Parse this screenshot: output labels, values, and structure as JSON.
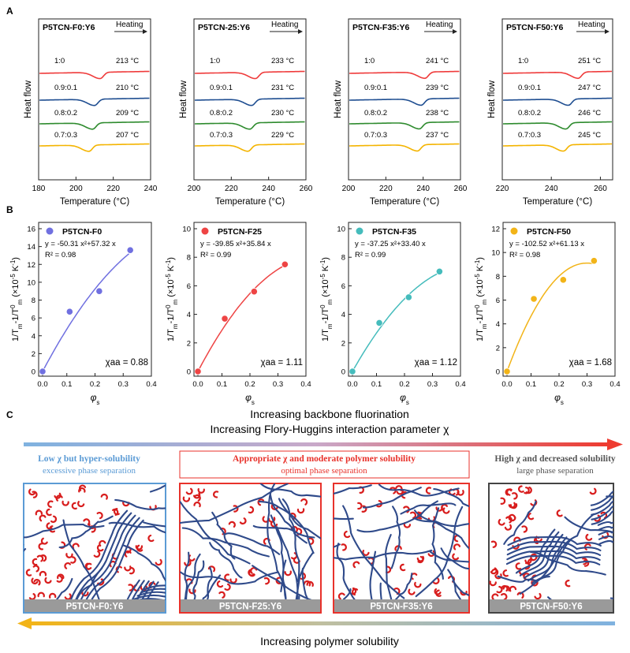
{
  "panel_labels": [
    "A",
    "B",
    "C"
  ],
  "dsc_xlabel": "Temperature (°C)",
  "dsc_ylabel": "Heat flow",
  "heating_label": "Heating",
  "fit_ylabel": "1/T_m-1/T^0_m (×10^-5 K^-1)",
  "fit_xlabel": "φ_s",
  "trace_colors": [
    "#ef3b3b",
    "#1f4e91",
    "#2e8b2e",
    "#f4b400"
  ],
  "chart_data": [
    {
      "type": "line",
      "panel": "A",
      "title": "P5TCN-F0:Y6",
      "xlabel": "Temperature (°C)",
      "ylabel": "Heat flow",
      "xlim": [
        180,
        240
      ],
      "xticks": [
        180,
        200,
        220,
        240
      ],
      "series": [
        {
          "name": "1:0",
          "peak": 213,
          "peak_label": "213 °C"
        },
        {
          "name": "0.9:0.1",
          "peak": 210,
          "peak_label": "210 °C"
        },
        {
          "name": "0.8:0.2",
          "peak": 209,
          "peak_label": "209 °C"
        },
        {
          "name": "0.7:0.3",
          "peak": 207,
          "peak_label": "207 °C"
        }
      ]
    },
    {
      "type": "line",
      "panel": "A",
      "title": "P5TCN-25:Y6",
      "xlabel": "Temperature (°C)",
      "ylabel": "Heat flow",
      "xlim": [
        200,
        260
      ],
      "xticks": [
        200,
        220,
        240,
        260
      ],
      "series": [
        {
          "name": "1:0",
          "peak": 233,
          "peak_label": "233 °C"
        },
        {
          "name": "0.9:0.1",
          "peak": 231,
          "peak_label": "231 °C"
        },
        {
          "name": "0.8:0.2",
          "peak": 230,
          "peak_label": "230 °C"
        },
        {
          "name": "0.7:0.3",
          "peak": 229,
          "peak_label": "229 °C"
        }
      ]
    },
    {
      "type": "line",
      "panel": "A",
      "title": "P5TCN-F35:Y6",
      "xlabel": "Temperature (°C)",
      "ylabel": "Heat flow",
      "xlim": [
        200,
        260
      ],
      "xticks": [
        200,
        220,
        240,
        260
      ],
      "series": [
        {
          "name": "1:0",
          "peak": 241,
          "peak_label": "241 °C"
        },
        {
          "name": "0.9:0.1",
          "peak": 239,
          "peak_label": "239 °C"
        },
        {
          "name": "0.8:0.2",
          "peak": 238,
          "peak_label": "238 °C"
        },
        {
          "name": "0.7:0.3",
          "peak": 237,
          "peak_label": "237 °C"
        }
      ]
    },
    {
      "type": "line",
      "panel": "A",
      "title": "P5TCN-F50:Y6",
      "xlabel": "Temperature (°C)",
      "ylabel": "Heat flow",
      "xlim": [
        220,
        265
      ],
      "xticks": [
        220,
        240,
        260
      ],
      "series": [
        {
          "name": "1:0",
          "peak": 251,
          "peak_label": "251 °C"
        },
        {
          "name": "0.9:0.1",
          "peak": 247,
          "peak_label": "247 °C"
        },
        {
          "name": "0.8:0.2",
          "peak": 246,
          "peak_label": "246 °C"
        },
        {
          "name": "0.7:0.3",
          "peak": 245,
          "peak_label": "245 °C"
        }
      ]
    },
    {
      "type": "scatter",
      "panel": "B",
      "name": "P5TCN-F0",
      "color": "#7070e0",
      "x": [
        0,
        0.11,
        0.215,
        0.325
      ],
      "y": [
        0,
        6.7,
        9.0,
        13.6
      ],
      "fit": {
        "a": -50.31,
        "b": 57.32
      },
      "equation": "y = -50.31 x²+57.32 x",
      "r2": "R² = 0.98",
      "chi_label": "χaa = 0.88",
      "xlim": [
        0,
        0.4
      ],
      "xticks": [
        "0.0",
        "0.1",
        "0.2",
        "0.3",
        "0.4"
      ],
      "ylim": [
        0,
        16
      ],
      "yticks": [
        "0",
        "2",
        "4",
        "6",
        "8",
        "10",
        "12",
        "14",
        "16"
      ]
    },
    {
      "type": "scatter",
      "panel": "B",
      "name": "P5TCN-F25",
      "color": "#ee4444",
      "x": [
        0,
        0.11,
        0.215,
        0.325
      ],
      "y": [
        0,
        3.7,
        5.6,
        7.5
      ],
      "fit": {
        "a": -39.85,
        "b": 35.84
      },
      "equation": "y = -39.85 x²+35.84 x",
      "r2": "R² = 0.99",
      "chi_label": "χaa = 1.11",
      "xlim": [
        0,
        0.4
      ],
      "xticks": [
        "0.0",
        "0.1",
        "0.2",
        "0.3",
        "0.4"
      ],
      "ylim": [
        0,
        10
      ],
      "yticks": [
        "0",
        "2",
        "4",
        "6",
        "8",
        "10"
      ]
    },
    {
      "type": "scatter",
      "panel": "B",
      "name": "P5TCN-F35",
      "color": "#45bcbc",
      "x": [
        0,
        0.11,
        0.215,
        0.325
      ],
      "y": [
        0,
        3.4,
        5.2,
        7.0
      ],
      "fit": {
        "a": -37.25,
        "b": 33.4
      },
      "equation": "y = -37.25 x²+33.40 x",
      "r2": "R² = 0.99",
      "chi_label": "χaa = 1.12",
      "xlim": [
        0,
        0.4
      ],
      "xticks": [
        "0.0",
        "0.1",
        "0.2",
        "0.3",
        "0.4"
      ],
      "ylim": [
        0,
        10
      ],
      "yticks": [
        "0",
        "2",
        "4",
        "6",
        "8",
        "10"
      ]
    },
    {
      "type": "scatter",
      "panel": "B",
      "name": "P5TCN-F50",
      "color": "#f2b418",
      "x": [
        0,
        0.11,
        0.215,
        0.325
      ],
      "y": [
        0,
        6.1,
        7.7,
        9.3
      ],
      "fit": {
        "a": -102.52,
        "b": 61.13
      },
      "equation": "y = -102.52 x²+61.13 x",
      "r2": "R² = 0.98",
      "chi_label": "χaa = 1.68",
      "xlim": [
        0,
        0.4
      ],
      "xticks": [
        "0.0",
        "0.1",
        "0.2",
        "0.3",
        "0.4"
      ],
      "ylim": [
        0,
        12
      ],
      "yticks": [
        "0",
        "2",
        "4",
        "6",
        "8",
        "10",
        "12"
      ]
    }
  ],
  "panel_c": {
    "title_line1": "Increasing backbone fluorination",
    "title_line2": "Increasing Flory-Huggins interaction parameter χ",
    "bottom_label": "Increasing polymer solubility",
    "categories": [
      {
        "title": "Low χ but hyper-solubility",
        "subtitle": "excessive phase separation",
        "color": "#5b9bd5"
      },
      {
        "title": "Appropriate χ and moderate polymer solubility",
        "subtitle": "optimal phase separation",
        "color": "#e8322b"
      },
      {
        "title": "High χ and decreased solubility",
        "subtitle": "large phase separation",
        "color": "#555555"
      }
    ],
    "boxes": [
      {
        "label": "P5TCN-F0:Y6",
        "border": "#5b9bd5"
      },
      {
        "label": "P5TCN-F25:Y6",
        "border": "#e8322b"
      },
      {
        "label": "P5TCN-F35:Y6",
        "border": "#e8322b"
      },
      {
        "label": "P5TCN-F50:Y6",
        "border": "#444444"
      }
    ],
    "polymer_color": "#2f4a8a",
    "acceptor_color": "#d81d1d"
  }
}
